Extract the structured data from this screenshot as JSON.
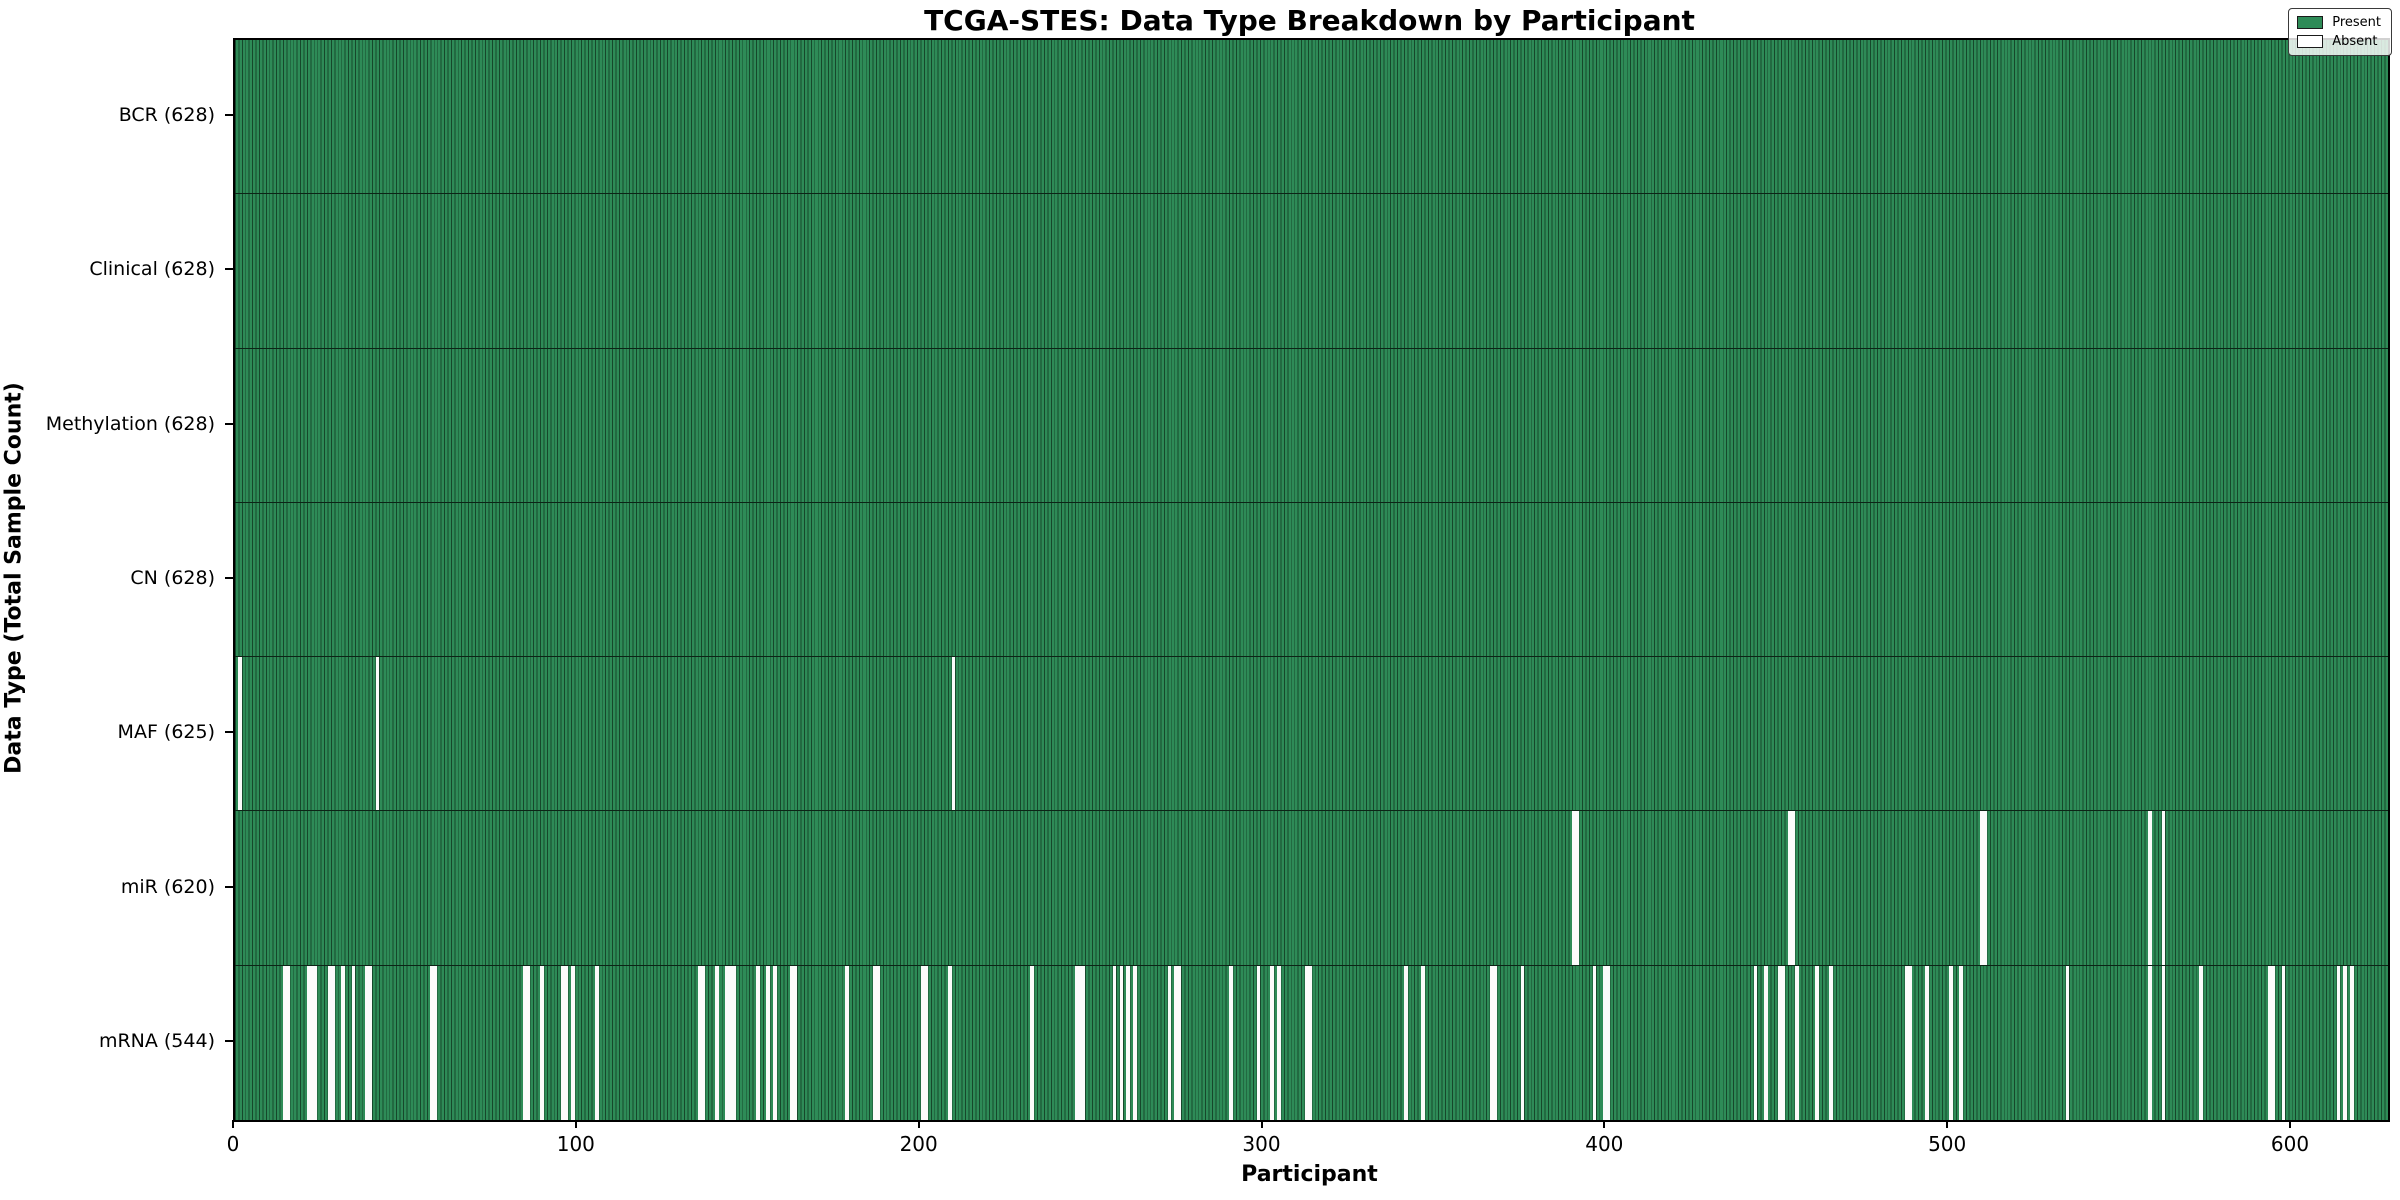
{
  "chart_data": {
    "type": "heatmap",
    "title": "TCGA-STES: Data Type Breakdown by Participant",
    "xlabel": "Participant",
    "ylabel": "Data Type (Total Sample Count)",
    "n_participants": 628,
    "x_ticks": [
      0,
      100,
      200,
      300,
      400,
      500,
      600
    ],
    "legend": [
      {
        "label": "Present",
        "color": "#2e8b57"
      },
      {
        "label": "Absent",
        "color": "#ffffff"
      }
    ],
    "colors": {
      "present": "#2e8b57",
      "bar_edge": "#16482b",
      "absent": "#fbfbfb"
    },
    "rows": [
      {
        "label": "BCR (628)",
        "data_type": "BCR",
        "count": 628,
        "absent": []
      },
      {
        "label": "Clinical (628)",
        "data_type": "Clinical",
        "count": 628,
        "absent": []
      },
      {
        "label": "Methylation (628)",
        "data_type": "Methylation",
        "count": 628,
        "absent": []
      },
      {
        "label": "CN (628)",
        "data_type": "CN",
        "count": 628,
        "absent": []
      },
      {
        "label": "MAF (625)",
        "data_type": "MAF",
        "count": 625,
        "absent": [
          1,
          41,
          209
        ]
      },
      {
        "label": "miR (620)",
        "data_type": "miR",
        "count": 620,
        "absent": [
          390,
          391,
          453,
          454,
          509,
          510,
          558,
          562
        ]
      },
      {
        "label": "mRNA (544)",
        "data_type": "mRNA",
        "count": 544,
        "absent": [
          14,
          15,
          21,
          22,
          23,
          27,
          28,
          31,
          34,
          38,
          39,
          57,
          58,
          84,
          85,
          89,
          95,
          96,
          98,
          105,
          135,
          136,
          140,
          143,
          144,
          145,
          152,
          155,
          157,
          162,
          163,
          178,
          186,
          187,
          200,
          201,
          208,
          232,
          245,
          246,
          247,
          256,
          258,
          260,
          262,
          272,
          274,
          275,
          290,
          298,
          302,
          304,
          312,
          313,
          341,
          346,
          366,
          367,
          375,
          396,
          399,
          400,
          443,
          446,
          450,
          451,
          455,
          461,
          465,
          487,
          488,
          493,
          500,
          503,
          534,
          558,
          562,
          573,
          593,
          594,
          597,
          613,
          615,
          617
        ]
      }
    ]
  }
}
